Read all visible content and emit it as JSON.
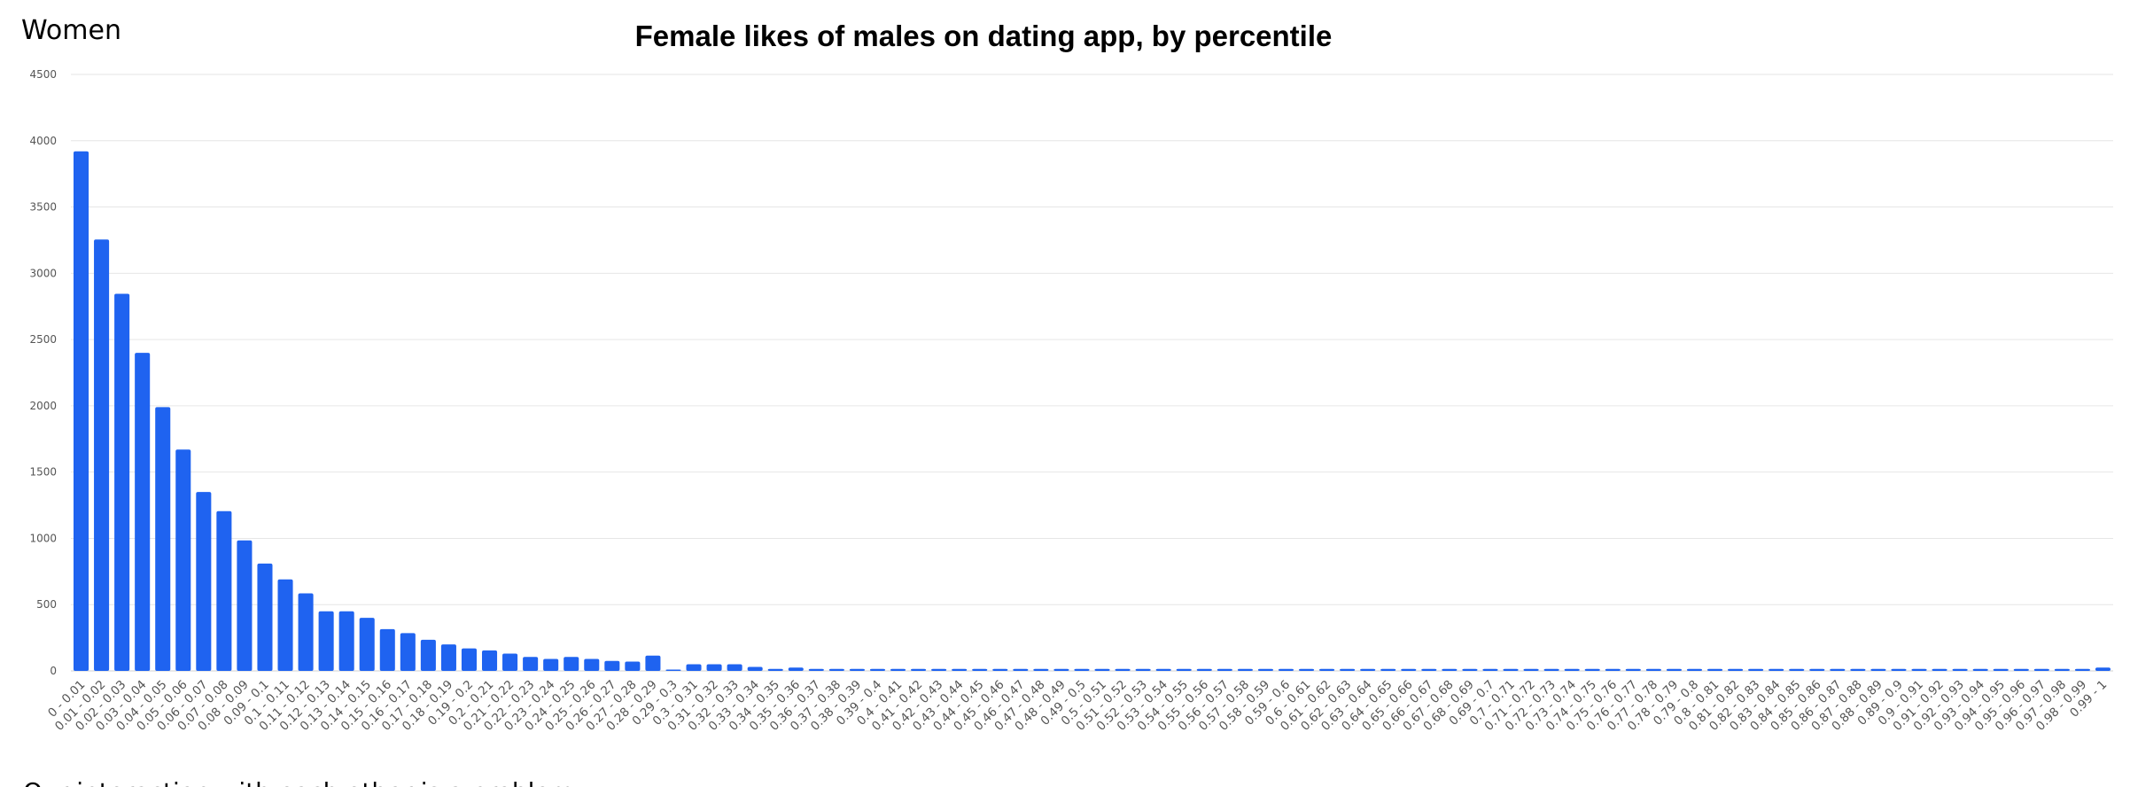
{
  "header": {
    "section_label": "Women"
  },
  "footer": {
    "partial_text": "Our interaction with each other is a problem"
  },
  "colors": {
    "bar": "#1f63f0"
  },
  "chart_data": {
    "type": "bar",
    "title": "Female likes of males on dating app, by percentile",
    "xlabel": "",
    "ylabel": "",
    "ylim": [
      0,
      4500
    ],
    "yticks": [
      0,
      500,
      1000,
      1500,
      2000,
      2500,
      3000,
      3500,
      4000,
      4500
    ],
    "grid": true,
    "legend": "none",
    "categories": [
      "0 - 0.01",
      "0.01 - 0.02",
      "0.02 - 0.03",
      "0.03 - 0.04",
      "0.04 - 0.05",
      "0.05 - 0.06",
      "0.06 - 0.07",
      "0.07 - 0.08",
      "0.08 - 0.09",
      "0.09 - 0.1",
      "0.1 - 0.11",
      "0.11 - 0.12",
      "0.12 - 0.13",
      "0.13 - 0.14",
      "0.14 - 0.15",
      "0.15 - 0.16",
      "0.16 - 0.17",
      "0.17 - 0.18",
      "0.18 - 0.19",
      "0.19 - 0.2",
      "0.2 - 0.21",
      "0.21 - 0.22",
      "0.22 - 0.23",
      "0.23 - 0.24",
      "0.24 - 0.25",
      "0.25 - 0.26",
      "0.26 - 0.27",
      "0.27 - 0.28",
      "0.28 - 0.29",
      "0.29 - 0.3",
      "0.3 - 0.31",
      "0.31 - 0.32",
      "0.32 - 0.33",
      "0.33 - 0.34",
      "0.34 - 0.35",
      "0.35 - 0.36",
      "0.36 - 0.37",
      "0.37 - 0.38",
      "0.38 - 0.39",
      "0.39 - 0.4",
      "0.4 - 0.41",
      "0.41 - 0.42",
      "0.42 - 0.43",
      "0.43 - 0.44",
      "0.44 - 0.45",
      "0.45 - 0.46",
      "0.46 - 0.47",
      "0.47 - 0.48",
      "0.48 - 0.49",
      "0.49 - 0.5",
      "0.5 - 0.51",
      "0.51 - 0.52",
      "0.52 - 0.53",
      "0.53 - 0.54",
      "0.54 - 0.55",
      "0.55 - 0.56",
      "0.56 - 0.57",
      "0.57 - 0.58",
      "0.58 - 0.59",
      "0.59 - 0.6",
      "0.6 - 0.61",
      "0.61 - 0.62",
      "0.62 - 0.63",
      "0.63 - 0.64",
      "0.64 - 0.65",
      "0.65 - 0.66",
      "0.66 - 0.67",
      "0.67 - 0.68",
      "0.68 - 0.69",
      "0.69 - 0.7",
      "0.7 - 0.71",
      "0.71 - 0.72",
      "0.72 - 0.73",
      "0.73 - 0.74",
      "0.74 - 0.75",
      "0.75 - 0.76",
      "0.76 - 0.77",
      "0.77 - 0.78",
      "0.78 - 0.79",
      "0.79 - 0.8",
      "0.8 - 0.81",
      "0.81 - 0.82",
      "0.82 - 0.83",
      "0.83 - 0.84",
      "0.84 - 0.85",
      "0.85 - 0.86",
      "0.86 - 0.87",
      "0.87 - 0.88",
      "0.88 - 0.89",
      "0.89 - 0.9",
      "0.9 - 0.91",
      "0.91 - 0.92",
      "0.92 - 0.93",
      "0.93 - 0.94",
      "0.94 - 0.95",
      "0.95 - 0.96",
      "0.96 - 0.97",
      "0.97 - 0.98",
      "0.98 - 0.99",
      "0.99 - 1"
    ],
    "values": [
      3920,
      3255,
      2845,
      2400,
      1990,
      1670,
      1350,
      1205,
      985,
      810,
      690,
      585,
      450,
      450,
      400,
      315,
      285,
      235,
      200,
      170,
      155,
      130,
      105,
      90,
      105,
      90,
      75,
      70,
      115,
      10,
      50,
      50,
      50,
      30,
      15,
      25,
      15,
      15,
      15,
      15,
      15,
      15,
      15,
      15,
      15,
      15,
      15,
      15,
      15,
      15,
      15,
      15,
      15,
      15,
      15,
      15,
      15,
      15,
      15,
      15,
      15,
      15,
      15,
      15,
      15,
      15,
      15,
      15,
      15,
      15,
      15,
      15,
      15,
      15,
      15,
      15,
      15,
      15,
      15,
      15,
      15,
      15,
      15,
      15,
      15,
      15,
      15,
      15,
      15,
      15,
      15,
      15,
      15,
      15,
      15,
      15,
      15,
      15,
      15,
      25
    ]
  }
}
